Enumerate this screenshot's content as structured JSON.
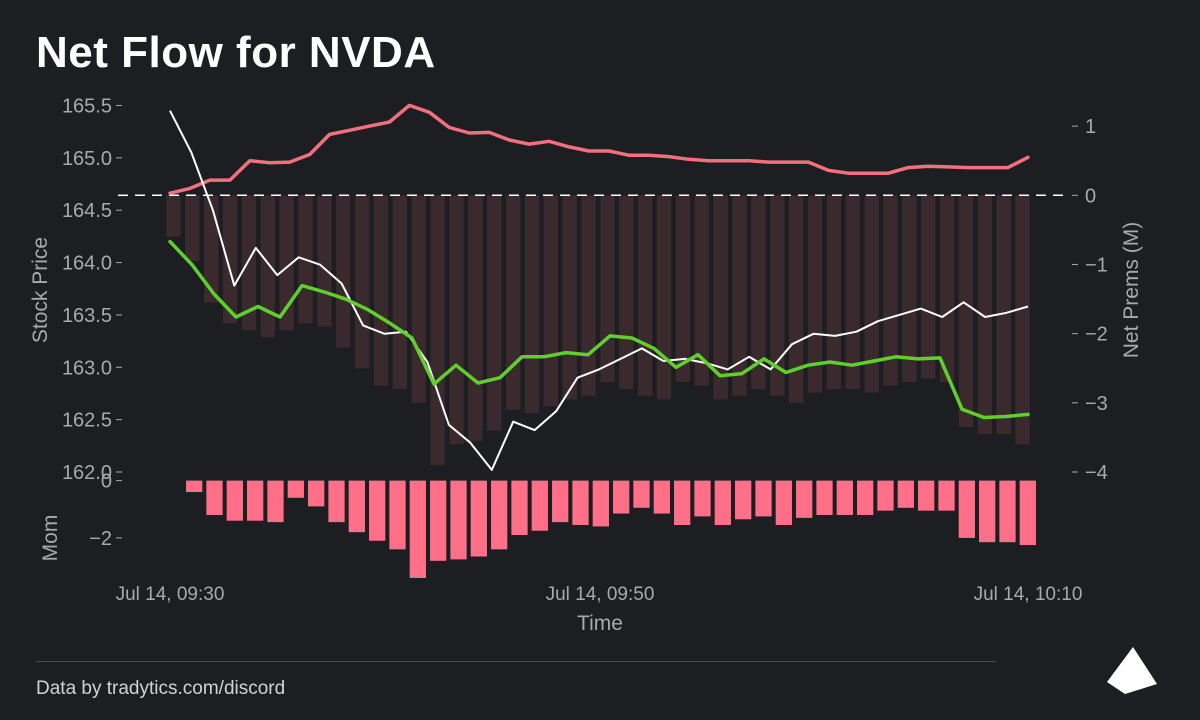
{
  "title": "Net Flow for NVDA",
  "footer": "Data by tradytics.com/discord",
  "colors": {
    "background": "#1d1e22",
    "net_prems_line": "#f0707e",
    "price_line": "#ffffff",
    "trend_line": "#5fcf2c",
    "prem_bars": "#3a2a2e",
    "mom_bars": "#ff6f87",
    "zero_line": "#ffffff",
    "axis_text": "#a9a9a9"
  },
  "chart_data": [
    {
      "type": "line",
      "panel": "main",
      "xlabel": "Time",
      "ylabel_left": "Stock Price",
      "ylabel_right": "Net Prems (M)",
      "x_ticks": [
        "Jul 14, 09:30",
        "Jul 14, 09:50",
        "Jul 14, 10:10"
      ],
      "y_left_ticks": [
        "165.5",
        "165.0",
        "164.5",
        "164.0",
        "163.5",
        "163.0",
        "162.5",
        "162.0"
      ],
      "y_right_ticks": [
        "1",
        "0",
        "−1",
        "−2",
        "−3",
        "−4"
      ],
      "ylim_left": [
        162.0,
        165.6
      ],
      "ylim_right": [
        -4.0,
        1.45
      ],
      "zero_line": "dashed",
      "series": [
        {
          "kind": "bars",
          "axis": "right",
          "values": [
            -0.6,
            -0.95,
            -1.55,
            -1.85,
            -1.95,
            -2.05,
            -1.95,
            -1.85,
            -1.9,
            -2.2,
            -2.5,
            -2.75,
            -2.8,
            -3.0,
            -3.9,
            -3.6,
            -3.55,
            -3.4,
            -3.1,
            -3.15,
            -3.05,
            -2.95,
            -2.9,
            -2.7,
            -2.8,
            -2.9,
            -2.95,
            -2.7,
            -2.75,
            -2.95,
            -2.9,
            -2.8,
            -2.9,
            -3.0,
            -2.85,
            -2.8,
            -2.8,
            -2.85,
            -2.75,
            -2.7,
            -2.65,
            -2.7,
            -3.35,
            -3.45,
            -3.45,
            -3.6
          ]
        },
        {
          "kind": "line",
          "axis": "right",
          "values": [
            0.03,
            0.1,
            0.22,
            0.22,
            0.5,
            0.47,
            0.48,
            0.59,
            0.88,
            0.94,
            1.0,
            1.06,
            1.3,
            1.2,
            0.98,
            0.9,
            0.91,
            0.8,
            0.74,
            0.78,
            0.7,
            0.64,
            0.64,
            0.58,
            0.58,
            0.56,
            0.52,
            0.5,
            0.5,
            0.5,
            0.48,
            0.48,
            0.48,
            0.36,
            0.32,
            0.32,
            0.32,
            0.4,
            0.42,
            0.41,
            0.4,
            0.4,
            0.4,
            0.55
          ]
        },
        {
          "kind": "line",
          "axis": "left",
          "values": [
            165.45,
            165.05,
            164.5,
            163.78,
            164.14,
            163.88,
            164.05,
            163.98,
            163.8,
            163.4,
            163.32,
            163.34,
            163.05,
            162.45,
            162.28,
            162.02,
            162.48,
            162.4,
            162.58,
            162.9,
            162.98,
            163.08,
            163.18,
            163.06,
            163.08,
            163.04,
            162.98,
            163.1,
            162.98,
            163.22,
            163.32,
            163.3,
            163.34,
            163.44,
            163.5,
            163.56,
            163.48,
            163.62,
            163.48,
            163.52,
            163.58
          ]
        },
        {
          "kind": "line",
          "axis": "left",
          "values": [
            164.2,
            163.98,
            163.7,
            163.48,
            163.58,
            163.48,
            163.78,
            163.72,
            163.65,
            163.55,
            163.42,
            163.28,
            162.84,
            163.02,
            162.85,
            162.9,
            163.1,
            163.1,
            163.14,
            163.12,
            163.3,
            163.28,
            163.18,
            163.0,
            163.12,
            162.92,
            162.94,
            163.08,
            162.95,
            163.02,
            163.05,
            163.02,
            163.06,
            163.1,
            163.08,
            163.09,
            162.6,
            162.52,
            162.53,
            162.55
          ]
        }
      ]
    },
    {
      "type": "bar",
      "panel": "momentum",
      "ylabel": "Mom",
      "y_ticks": [
        "0",
        "−2"
      ],
      "ylim": [
        -3.4,
        0.3
      ],
      "values": [
        -0.4,
        -1.2,
        -1.4,
        -1.4,
        -1.45,
        -0.6,
        -0.9,
        -1.45,
        -1.8,
        -2.1,
        -2.4,
        -3.4,
        -2.8,
        -2.75,
        -2.65,
        -2.4,
        -1.9,
        -1.75,
        -1.45,
        -1.55,
        -1.6,
        -1.15,
        -0.95,
        -1.15,
        -1.55,
        -1.25,
        -1.55,
        -1.35,
        -1.25,
        -1.55,
        -1.3,
        -1.2,
        -1.2,
        -1.2,
        -1.05,
        -0.95,
        -1.05,
        -1.05,
        -2.0,
        -2.15,
        -2.15,
        -2.25
      ]
    }
  ]
}
